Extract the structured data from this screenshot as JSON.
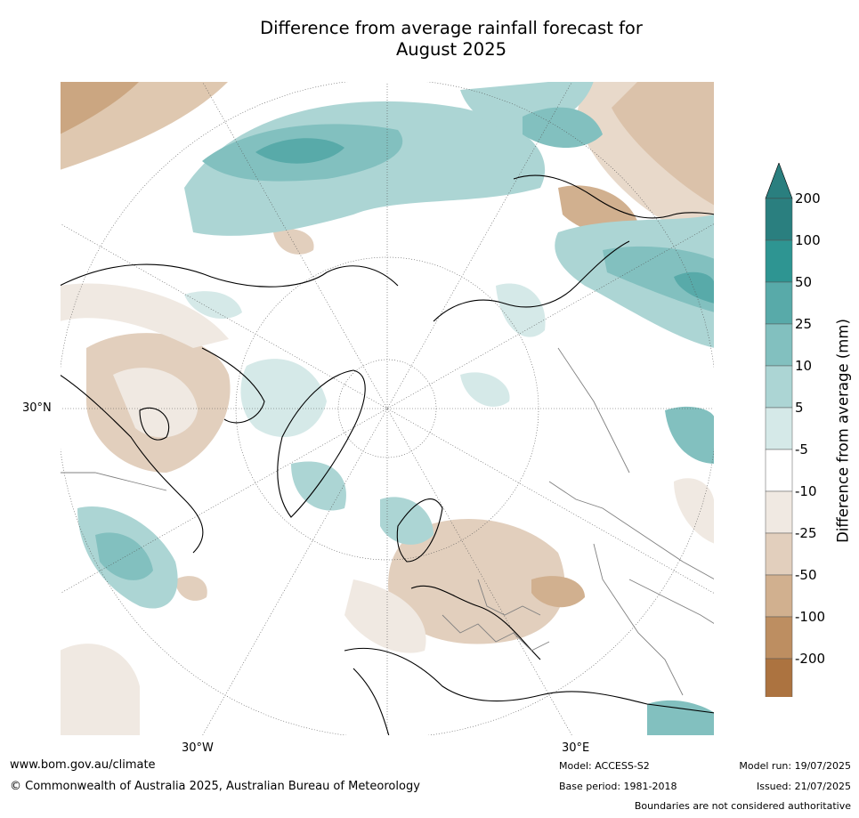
{
  "title_line1": "Difference from average rainfall forecast for",
  "title_line2": "August 2025",
  "map": {
    "projection": "north-polar-stereographic",
    "labels": {
      "lat_30n": "30°N",
      "lon_30w": "30°W",
      "lon_30e": "30°E"
    },
    "palette": {
      "dry_200": "#ac7340",
      "dry_100": "#bd8e61",
      "dry_50": "#d1b08f",
      "dry_25": "#e2cfbd",
      "dry_10": "#f0e9e2",
      "neutral": "#ffffff",
      "wet_5": "#d5e9e8",
      "wet_10": "#acd5d4",
      "wet_25": "#82c0bf",
      "wet_50": "#58aaa9",
      "wet_100": "#2e9592",
      "wet_200": "#2a7f7f",
      "coast": "#000000",
      "border": "#808080"
    }
  },
  "colorbar": {
    "title": "Difference from average (mm)",
    "ticks": [
      "200",
      "100",
      "50",
      "25",
      "10",
      "5",
      "-5",
      "-10",
      "-25",
      "-50",
      "-100",
      "-200"
    ],
    "colors": [
      "#2a7f7f",
      "#2e9592",
      "#58aaa9",
      "#82c0bf",
      "#acd5d4",
      "#d5e9e8",
      "#ffffff",
      "#f0e9e2",
      "#e2cfbd",
      "#d1b08f",
      "#bd8e61",
      "#ac7340"
    ],
    "arrow_top_color": "#2a7f7f",
    "arrow_bottom_color": "#965d26"
  },
  "footer": {
    "website": "www.bom.gov.au/climate",
    "copyright": "© Commonwealth of Australia 2025, Australian Bureau of Meteorology",
    "model": "Model: ACCESS-S2",
    "base_period": "Base period: 1981-2018",
    "model_run": "Model run: 19/07/2025",
    "issued": "Issued: 21/07/2025",
    "disclaimer": "Boundaries are not considered authoritative"
  }
}
